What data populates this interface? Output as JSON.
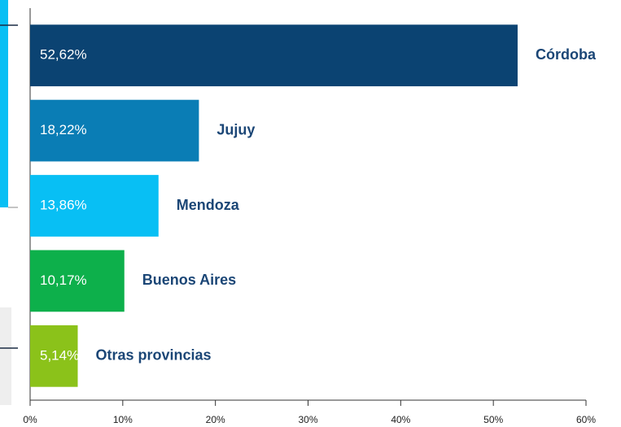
{
  "chart_data": {
    "type": "bar",
    "orientation": "horizontal",
    "categories": [
      "Córdoba",
      "Jujuy",
      "Mendoza",
      "Buenos Aires",
      "Otras provincias"
    ],
    "values": [
      52.62,
      18.22,
      13.86,
      10.17,
      5.14
    ],
    "value_labels": [
      "52,62%",
      "18,22%",
      "13,86%",
      "10,17%",
      "5,14%"
    ],
    "colors": [
      "#0b4372",
      "#0a7db5",
      "#08bff4",
      "#0db04b",
      "#8bc21a"
    ],
    "xlim": [
      0,
      60
    ],
    "xticks": [
      {
        "value": 0,
        "label": "0%"
      },
      {
        "value": 10,
        "label": "10%"
      },
      {
        "value": 20,
        "label": "20%"
      },
      {
        "value": 30,
        "label": "30%"
      },
      {
        "value": 40,
        "label": "40%"
      },
      {
        "value": 50,
        "label": "50%"
      },
      {
        "value": 60,
        "label": "60%"
      }
    ]
  }
}
